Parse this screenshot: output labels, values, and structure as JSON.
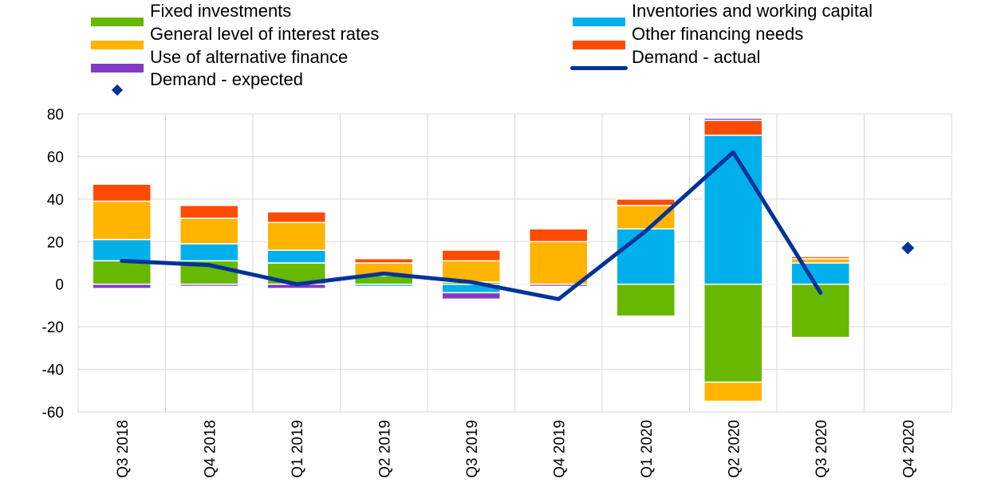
{
  "colors": {
    "fixed": "#66B800",
    "inventories": "#00B0EA",
    "interest": "#FFB400",
    "other": "#FF4B00",
    "alternative": "#8139C6",
    "actual": "#003299",
    "expected": "#003299",
    "grid": "#D9D9D9"
  },
  "legend": [
    {
      "key": "fixed",
      "label": "Fixed investments",
      "kind": "bar"
    },
    {
      "key": "inventories",
      "label": "Inventories and working capital",
      "kind": "bar"
    },
    {
      "key": "interest",
      "label": "General level of interest rates",
      "kind": "bar"
    },
    {
      "key": "other",
      "label": "Other financing needs",
      "kind": "bar"
    },
    {
      "key": "alternative",
      "label": "Use of alternative finance",
      "kind": "bar"
    },
    {
      "key": "actual",
      "label": "Demand - actual",
      "kind": "line"
    },
    {
      "key": "expected",
      "label": "Demand - expected",
      "kind": "marker"
    }
  ],
  "chart_data": {
    "type": "bar",
    "stacked": true,
    "categories": [
      "Q3 2018",
      "Q4 2018",
      "Q1 2019",
      "Q2 2019",
      "Q3 2019",
      "Q4 2019",
      "Q1 2020",
      "Q2 2020",
      "Q3 2020",
      "Q4 2020"
    ],
    "ylim": [
      -60,
      80
    ],
    "yticks": [
      80,
      60,
      40,
      20,
      0,
      -20,
      -40,
      -60
    ],
    "grid": true,
    "legend_position": "top",
    "series": [
      {
        "key": "fixed",
        "name": "Fixed investments",
        "values": [
          11,
          11,
          10,
          4,
          1,
          0,
          -15,
          -46,
          -25,
          null
        ]
      },
      {
        "key": "inventories",
        "name": "Inventories and working capital",
        "values": [
          10,
          8,
          6,
          -1,
          -4,
          0,
          26,
          70,
          10,
          null
        ]
      },
      {
        "key": "interest",
        "name": "General level of interest rates",
        "values": [
          18,
          12,
          13,
          6,
          10,
          20,
          11,
          -9,
          2,
          null
        ]
      },
      {
        "key": "other",
        "name": "Other financing needs",
        "values": [
          8,
          6,
          5,
          2,
          5,
          6,
          3,
          7,
          1,
          null
        ]
      },
      {
        "key": "alternative",
        "name": "Use of alternative finance",
        "values": [
          -2,
          -1,
          -2,
          0,
          -3,
          -1,
          0,
          1,
          0,
          null
        ]
      }
    ],
    "line": {
      "key": "actual",
      "name": "Demand - actual",
      "values": [
        11,
        9,
        0,
        5,
        1,
        -7,
        25,
        62,
        -4,
        null
      ]
    },
    "markers": {
      "key": "expected",
      "name": "Demand - expected",
      "values": [
        null,
        null,
        null,
        null,
        null,
        null,
        null,
        null,
        null,
        17
      ]
    }
  }
}
